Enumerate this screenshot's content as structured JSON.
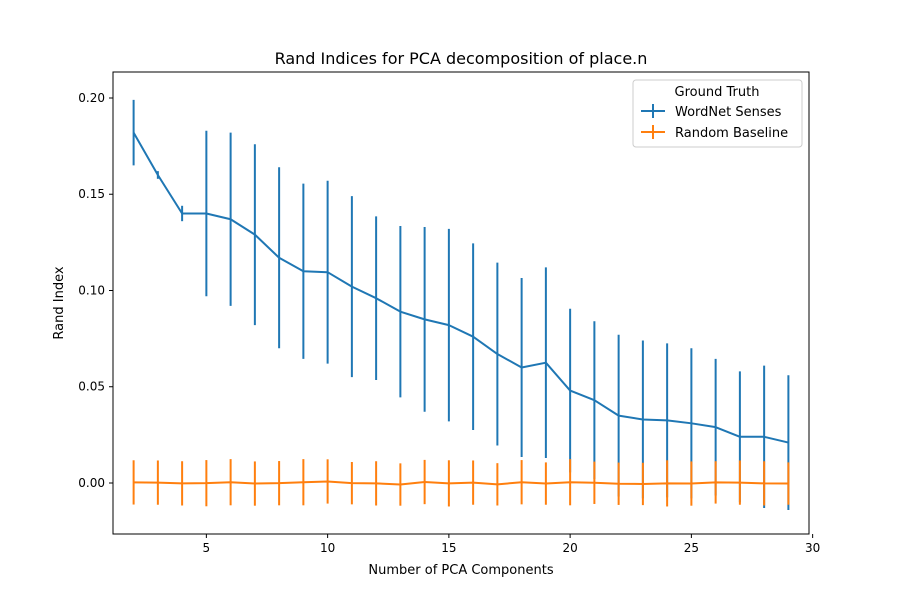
{
  "chart_data": {
    "type": "line",
    "title": "Rand Indices for PCA decomposition of place.n",
    "xlabel": "Number of PCA Components",
    "ylabel": "Rand Index",
    "xlim": [
      1.15,
      29.85
    ],
    "ylim": [
      -0.0265,
      0.2135
    ],
    "xticks": [
      5,
      10,
      15,
      20,
      25,
      30
    ],
    "yticks": [
      0.0,
      0.05,
      0.1,
      0.15,
      0.2
    ],
    "ytick_labels": [
      "0.00",
      "0.05",
      "0.10",
      "0.15",
      "0.20"
    ],
    "grid": false,
    "legend": {
      "title": "Ground Truth",
      "placement": "top-right"
    },
    "x": [
      2,
      3,
      4,
      5,
      6,
      7,
      8,
      9,
      10,
      11,
      12,
      13,
      14,
      15,
      16,
      17,
      18,
      19,
      20,
      21,
      22,
      23,
      24,
      25,
      26,
      27,
      28,
      29
    ],
    "series": [
      {
        "name": "WordNet Senses",
        "color": "#1f77b4",
        "values": [
          0.182,
          0.16,
          0.14,
          0.14,
          0.137,
          0.129,
          0.117,
          0.11,
          0.1095,
          0.102,
          0.096,
          0.089,
          0.085,
          0.082,
          0.076,
          0.067,
          0.06,
          0.0625,
          0.048,
          0.043,
          0.035,
          0.033,
          0.0325,
          0.031,
          0.029,
          0.024,
          0.024,
          0.021
        ],
        "errors": [
          0.017,
          0.002,
          0.004,
          0.043,
          0.045,
          0.047,
          0.047,
          0.0455,
          0.0475,
          0.047,
          0.0425,
          0.0445,
          0.048,
          0.05,
          0.0485,
          0.0475,
          0.0465,
          0.0495,
          0.0425,
          0.041,
          0.042,
          0.041,
          0.04,
          0.039,
          0.0355,
          0.034,
          0.037,
          0.035
        ]
      },
      {
        "name": "Random Baseline",
        "color": "#ff7f0e",
        "values": [
          0.0003,
          0.0002,
          -0.0002,
          -0.0001,
          0.0004,
          -0.0003,
          -0.0001,
          0.0004,
          0.0008,
          -0.0001,
          -0.0002,
          -0.0008,
          0.0005,
          -0.0002,
          0.0002,
          -0.0007,
          0.0004,
          -0.0003,
          0.0004,
          0.0001,
          -0.0004,
          -0.0005,
          -0.0002,
          -0.0003,
          0.0003,
          0.0002,
          -0.0002,
          -0.0003
        ],
        "errors": [
          0.0115,
          0.0115,
          0.0115,
          0.012,
          0.012,
          0.0115,
          0.0115,
          0.012,
          0.0115,
          0.011,
          0.0115,
          0.011,
          0.0115,
          0.012,
          0.0115,
          0.011,
          0.0115,
          0.011,
          0.012,
          0.011,
          0.011,
          0.011,
          0.012,
          0.0115,
          0.011,
          0.0115,
          0.0115,
          0.011
        ]
      }
    ]
  }
}
